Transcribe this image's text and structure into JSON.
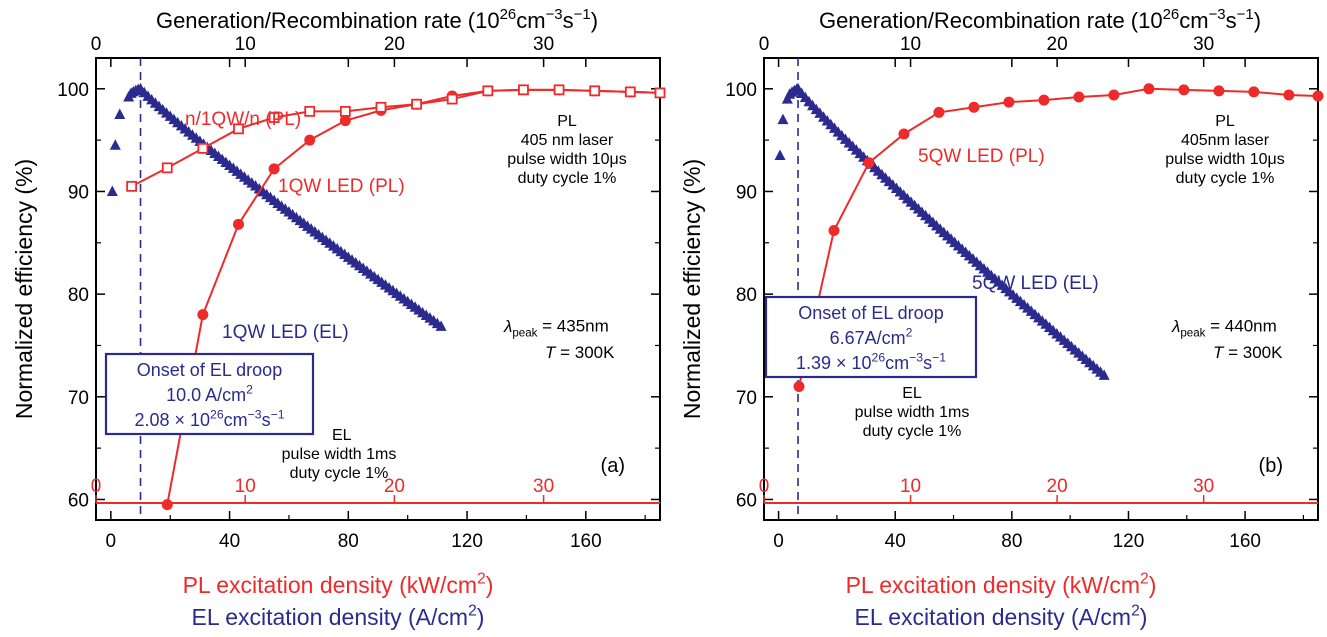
{
  "colors": {
    "el": "#2b2b8f",
    "pl": "#ee2a2a",
    "text": "#000000"
  },
  "top_axis_label": "Generation/Recombination rate (10",
  "top_axis_label_sup": "26",
  "top_axis_label_mid": "cm",
  "top_axis_label_sup2": "−3",
  "top_axis_label_end": "s",
  "top_axis_label_sup3": "−1",
  "top_axis_label_close": ")",
  "ylabel": "Normalized efficiency (%)",
  "xlabel_pl": "PL excitation density (kW/cm",
  "xlabel_pl_sup": "2",
  "xlabel_pl_end": ")",
  "xlabel_el": "EL excitation density (A/cm",
  "xlabel_el_sup": "2",
  "xlabel_el_end": ")",
  "chart_data": [
    {
      "type": "scatter",
      "panel_label": "(a)",
      "xlim": [
        -5,
        185
      ],
      "ylim": [
        58,
        103
      ],
      "xticks": [
        0,
        40,
        80,
        120,
        160
      ],
      "yticks": [
        60,
        70,
        80,
        90,
        100
      ],
      "top_xlim": [
        0,
        37.8
      ],
      "top_ticks": [
        0,
        10,
        20,
        30
      ],
      "pl_inner_ticks": [
        0,
        10,
        20,
        30
      ],
      "series": [
        {
          "name": "1QW LED (EL)",
          "marker": "triangle",
          "color": "el",
          "start": 0.5,
          "step": 0.5,
          "peak_x": 10,
          "peak_y": 100,
          "end": 112,
          "end_y": 76.7,
          "x": [
            0.5,
            1.5,
            3,
            6
          ],
          "y": [
            90,
            94.5,
            97.5,
            99.2
          ]
        },
        {
          "name": "1QW LED (PL)",
          "marker": "circle-filled",
          "color": "pl",
          "x": [
            19,
            31,
            43,
            55,
            67,
            79,
            91,
            103,
            115,
            127,
            139,
            151,
            163,
            175,
            185
          ],
          "y": [
            59.5,
            78,
            86.8,
            92.2,
            95,
            96.9,
            97.9,
            98.5,
            99.3,
            99.8,
            99.9,
            99.9,
            99.8,
            99.7,
            99.6
          ]
        },
        {
          "name": "n/1QW/n (PL)",
          "marker": "square-open",
          "color": "pl",
          "x": [
            7,
            19,
            31,
            43,
            55,
            67,
            79,
            91,
            103,
            115,
            127,
            139,
            151,
            163,
            175,
            185
          ],
          "y": [
            90.5,
            92.3,
            94.2,
            96.1,
            97.2,
            97.8,
            97.8,
            98.2,
            98.5,
            99,
            99.8,
            99.9,
            99.9,
            99.8,
            99.7,
            99.6
          ]
        }
      ],
      "droop_x": 10,
      "onset_box": [
        "Onset of EL droop",
        "10.0 A/cm",
        "2.08 × 10",
        "cm",
        "s"
      ],
      "onset_sups": [
        "2",
        "26",
        "−3",
        "−1"
      ],
      "labels": {
        "n1qwn": "n/1QW/n (PL)",
        "pl_led": "1QW LED (PL)",
        "el_led": "1QW LED (EL)",
        "pl_cond": [
          "PL",
          "405 nm laser",
          "pulse width 10μs",
          "duty cycle 1%"
        ],
        "el_cond": [
          "EL",
          "pulse width 1ms",
          "duty cycle 1%"
        ],
        "lambda": "λ",
        "lambda_sub": "peak",
        "lambda_val": " = 435nm",
        "temp_t": "T",
        "temp_val": " = 300K"
      }
    },
    {
      "type": "scatter",
      "panel_label": "(b)",
      "xlim": [
        -5,
        185
      ],
      "ylim": [
        58,
        103
      ],
      "xticks": [
        0,
        40,
        80,
        120,
        160
      ],
      "yticks": [
        60,
        70,
        80,
        90,
        100
      ],
      "top_xlim": [
        0,
        37.8
      ],
      "top_ticks": [
        0,
        10,
        20,
        30
      ],
      "pl_inner_ticks": [
        0,
        10,
        20,
        30
      ],
      "series": [
        {
          "name": "5QW LED (EL)",
          "marker": "triangle",
          "color": "el",
          "start": 0.5,
          "step": 0.5,
          "peak_x": 6.67,
          "peak_y": 100,
          "end": 112,
          "end_y": 72,
          "x": [
            0.5,
            1.5,
            3
          ],
          "y": [
            93.5,
            97,
            99
          ]
        },
        {
          "name": "5QW LED (PL)",
          "marker": "circle-filled",
          "color": "pl",
          "x": [
            7,
            19,
            31,
            43,
            55,
            67,
            79,
            91,
            103,
            115,
            127,
            139,
            151,
            163,
            175,
            185
          ],
          "y": [
            71,
            86.2,
            92.8,
            95.6,
            97.7,
            98.2,
            98.7,
            98.9,
            99.2,
            99.4,
            100,
            99.9,
            99.8,
            99.7,
            99.4,
            99.3
          ]
        }
      ],
      "droop_x": 6.67,
      "onset_box": [
        "Onset of EL droop",
        "6.67A/cm",
        "1.39 × 10",
        "cm",
        "s"
      ],
      "onset_sups": [
        "2",
        "26",
        "−3",
        "−1"
      ],
      "labels": {
        "pl_led": "5QW LED (PL)",
        "el_led": "5QW LED (EL)",
        "pl_cond": [
          "PL",
          "405nm laser",
          "pulse width 10μs",
          "duty cycle 1%"
        ],
        "el_cond": [
          "EL",
          "pulse width 1ms",
          "duty cycle 1%"
        ],
        "lambda": "λ",
        "lambda_sub": "peak",
        "lambda_val": " = 440nm",
        "temp_t": "T",
        "temp_val": " = 300K"
      }
    }
  ]
}
